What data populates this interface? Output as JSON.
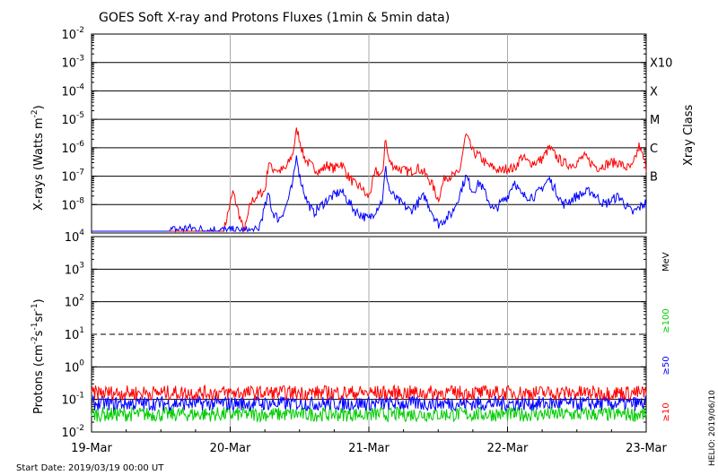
{
  "chart_data": [
    {
      "type": "line",
      "title": "GOES Soft X-ray and Protons Fluxes   (1min & 5min data)",
      "ylabel_main": "X-rays (Watts m",
      "ylabel_exp": "-2",
      "ylabel_close": ")",
      "yscale": "log",
      "ylim": [
        1e-09,
        0.01
      ],
      "yticks": [
        {
          "base": "10",
          "exp": "-8",
          "value": 1e-08
        },
        {
          "base": "10",
          "exp": "-7",
          "value": 1e-07
        },
        {
          "base": "10",
          "exp": "-6",
          "value": 1e-06
        },
        {
          "base": "10",
          "exp": "-5",
          "value": 1e-05
        },
        {
          "base": "10",
          "exp": "-4",
          "value": 0.0001
        },
        {
          "base": "10",
          "exp": "-3",
          "value": 0.001
        },
        {
          "base": "10",
          "exp": "-2",
          "value": 0.01
        }
      ],
      "flare_classes": [
        {
          "label": "X10",
          "value": 0.001
        },
        {
          "label": "X",
          "value": 0.0001
        },
        {
          "label": "M",
          "value": 1e-05
        },
        {
          "label": "C",
          "value": 1e-06
        },
        {
          "label": "B",
          "value": 1e-07
        }
      ],
      "right_axis_label": "Xray Class",
      "grid_lines": [
        1e-08,
        1e-07,
        1e-06,
        1e-05,
        0.0001,
        0.001
      ],
      "series": [
        {
          "color": "#ff0000",
          "x": [
            19.0,
            19.5,
            19.95,
            20.02,
            20.1,
            20.15,
            20.2,
            20.25,
            20.28,
            20.3,
            20.32,
            20.35,
            20.4,
            20.45,
            20.48,
            20.5,
            20.53,
            20.56,
            20.6,
            20.65,
            20.7,
            20.75,
            20.8,
            20.85,
            20.9,
            20.95,
            20.98,
            21.0,
            21.05,
            21.1,
            21.12,
            21.13,
            21.15,
            21.2,
            21.25,
            21.3,
            21.35,
            21.4,
            21.45,
            21.5,
            21.55,
            21.6,
            21.65,
            21.7,
            21.75,
            21.8,
            21.85,
            21.9,
            21.95,
            22.0,
            22.05,
            22.1,
            22.15,
            22.2,
            22.25,
            22.3,
            22.35,
            22.4,
            22.45,
            22.5,
            22.55,
            22.6,
            22.65,
            22.7,
            22.75,
            22.8,
            22.85,
            22.9,
            22.95,
            23.0
          ],
          "y": [
            1e-09,
            1e-09,
            1e-09,
            2.8e-08,
            1e-09,
            1.2e-08,
            2.2e-08,
            3e-08,
            4e-07,
            1.6e-07,
            2e-07,
            1.5e-07,
            1.8e-07,
            6e-07,
            4.5e-06,
            2e-06,
            5e-07,
            3e-07,
            2e-07,
            1.5e-07,
            2.5e-07,
            1.8e-07,
            3e-07,
            1e-07,
            5e-08,
            4e-08,
            2e-08,
            2e-08,
            1.5e-07,
            1e-07,
            3.5e-06,
            8e-07,
            3e-07,
            2e-07,
            1.6e-07,
            1.4e-07,
            2e-07,
            1.3e-07,
            6e-08,
            1.5e-08,
            1e-07,
            1e-07,
            1.2e-07,
            3e-06,
            7e-07,
            5e-07,
            2.5e-07,
            2e-07,
            1.5e-07,
            2e-07,
            1.8e-07,
            5e-07,
            3e-07,
            3e-07,
            4e-07,
            1e-06,
            5e-07,
            3e-07,
            2.5e-07,
            3e-07,
            5e-07,
            3e-07,
            2e-07,
            2.5e-07,
            3e-07,
            3e-07,
            2e-07,
            2e-07,
            1.2e-06,
            2e-07
          ]
        },
        {
          "color": "#0000ff",
          "x": [
            19.0,
            19.5,
            19.6,
            19.7,
            19.8,
            19.9,
            20.0,
            20.1,
            20.2,
            20.28,
            20.3,
            20.35,
            20.4,
            20.45,
            20.48,
            20.5,
            20.55,
            20.6,
            20.7,
            20.8,
            20.9,
            21.0,
            21.1,
            21.12,
            21.15,
            21.2,
            21.3,
            21.4,
            21.5,
            21.6,
            21.65,
            21.7,
            21.75,
            21.8,
            21.9,
            22.0,
            22.05,
            22.1,
            22.2,
            22.3,
            22.35,
            22.4,
            22.5,
            22.6,
            22.7,
            22.8,
            22.9,
            23.0
          ],
          "y": [
            1e-09,
            1e-09,
            1.3e-09,
            1.5e-09,
            1.3e-09,
            1.3e-09,
            1.2e-09,
            1.2e-09,
            1.2e-09,
            2.5e-08,
            6e-09,
            3e-09,
            8e-09,
            5e-08,
            6e-07,
            1e-07,
            1.5e-08,
            5e-09,
            1.5e-08,
            3e-08,
            6e-09,
            3e-09,
            1.5e-08,
            2e-07,
            3e-08,
            1.5e-08,
            6e-09,
            2e-08,
            2e-09,
            5e-09,
            2e-08,
            1e-07,
            3e-08,
            6e-08,
            6e-09,
            2e-08,
            7e-08,
            2e-08,
            2e-08,
            8e-08,
            3e-08,
            1e-08,
            2e-08,
            3e-08,
            1e-08,
            2e-08,
            5e-09,
            1.2e-08
          ]
        }
      ]
    },
    {
      "type": "line",
      "ylabel_main": "Protons (cm",
      "ylabel_exp1": "-2",
      "ylabel_mid": "s",
      "ylabel_exp2": "-1",
      "ylabel_mid2": "sr",
      "ylabel_exp3": "-1",
      "ylabel_close": ")",
      "yscale": "log",
      "ylim": [
        0.01,
        10000
      ],
      "yticks": [
        {
          "base": "10",
          "exp": "-2",
          "value": 0.01
        },
        {
          "base": "10",
          "exp": "-1",
          "value": 0.1
        },
        {
          "base": "10",
          "exp": "0",
          "value": 1
        },
        {
          "base": "10",
          "exp": "1",
          "value": 10
        },
        {
          "base": "10",
          "exp": "2",
          "value": 100
        },
        {
          "base": "10",
          "exp": "3",
          "value": 1000
        },
        {
          "base": "10",
          "exp": "4",
          "value": 10000
        }
      ],
      "grid_lines": [
        0.1,
        1,
        100,
        1000
      ],
      "dashed_line": 10,
      "units_label": "MeV",
      "energy_labels": [
        {
          "label": "≥100",
          "color": "#00cc00"
        },
        {
          "label": "≥50",
          "color": "#0000ff"
        },
        {
          "label": "≥10",
          "color": "#ff0000"
        }
      ],
      "series": [
        {
          "name": "≥10",
          "color": "#ff0000",
          "level": 0.16
        },
        {
          "name": "≥50",
          "color": "#0000ff",
          "level": 0.075
        },
        {
          "name": "≥100",
          "color": "#00cc00",
          "level": 0.035
        }
      ]
    }
  ],
  "x_axis": {
    "range": [
      19,
      23
    ],
    "ticks": [
      {
        "label": "19-Mar",
        "value": 19
      },
      {
        "label": "20-Mar",
        "value": 20
      },
      {
        "label": "21-Mar",
        "value": 21
      },
      {
        "label": "22-Mar",
        "value": 22
      },
      {
        "label": "23-Mar",
        "value": 23
      }
    ]
  },
  "start_date": "Start Date: 2019/03/19 00:00 UT",
  "credit": "HELIO: 2019/06/10"
}
